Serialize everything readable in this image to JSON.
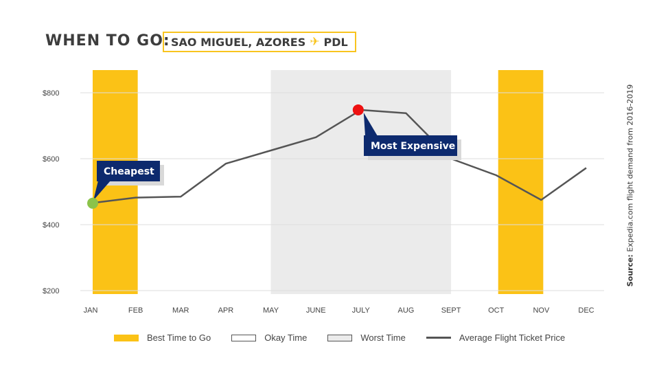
{
  "header": {
    "title": "WHEN TO GO:",
    "destination": "SAO MIGUEL, AZORES",
    "plane_icon": "airplane-icon",
    "airport_code": "PDL"
  },
  "source_note": {
    "label": "Source:",
    "text": "Expedia.com flight demand from 2016-2019"
  },
  "colors": {
    "best": "#fbc216",
    "worst": "#ebebeb",
    "line": "#555555",
    "cheapest_marker": "#8bc34a",
    "expensive_marker": "#ee1111",
    "callout_bg": "#0d2a6e",
    "callout_shadow": "#d9d9d9"
  },
  "legend": {
    "best": "Best Time to Go",
    "okay": "Okay Time",
    "worst": "Worst Time",
    "line": "Average Flight Ticket Price"
  },
  "chart_data": {
    "type": "line",
    "categories": [
      "JAN",
      "FEB",
      "MAR",
      "APR",
      "MAY",
      "JUNE",
      "JULY",
      "AUG",
      "SEPT",
      "OCT",
      "NOV",
      "DEC"
    ],
    "series": [
      {
        "name": "Average Flight Ticket Price",
        "values": [
          465,
          482,
          485,
          585,
          625,
          665,
          748,
          738,
          600,
          550,
          475,
          572
        ]
      }
    ],
    "ylim": [
      200,
      800
    ],
    "yticks": [
      200,
      400,
      600,
      800
    ],
    "ytick_labels": [
      "$200",
      "$400",
      "$600",
      "$800"
    ],
    "best_periods": [
      [
        "JAN",
        "FEB"
      ],
      [
        "OCT",
        "NOV"
      ]
    ],
    "worst_periods": [
      [
        "MAY",
        "SEPT"
      ]
    ],
    "annotations": [
      {
        "text": "Cheapest",
        "month": "JAN",
        "marker": "cheapest"
      },
      {
        "text": "Most Expensive",
        "month": "JULY",
        "marker": "expensive"
      }
    ],
    "grid": true
  }
}
